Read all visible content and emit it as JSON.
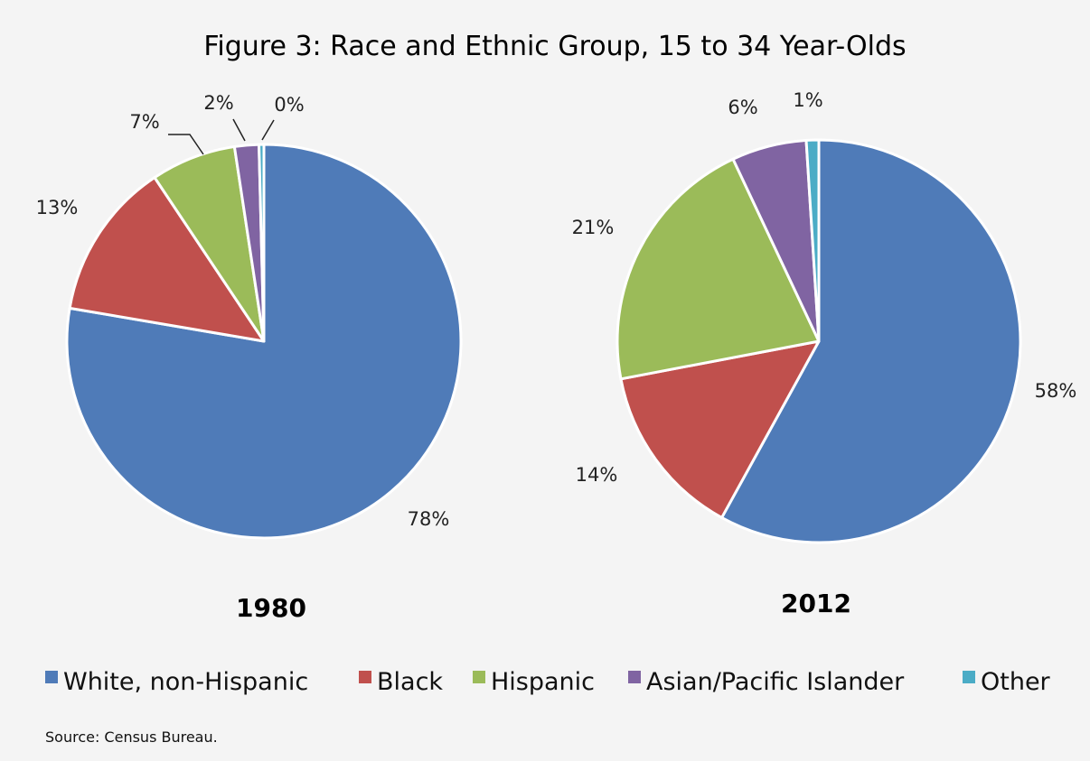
{
  "figure_title": "Figure 3: Race and Ethnic Group, 15 to 34 Year-Olds",
  "source": "Source: Census Bureau.",
  "colors": {
    "White, non-Hispanic": "#4f7bb8",
    "Black": "#c0504d",
    "Hispanic": "#9bbb59",
    "Asian/Pacific Islander": "#8064a2",
    "Other": "#4bacc6"
  },
  "legend": [
    "White, non-Hispanic",
    "Black",
    "Hispanic",
    "Asian/Pacific Islander",
    "Other"
  ],
  "chart_data": [
    {
      "type": "pie",
      "title": "1980",
      "categories": [
        "White, non-Hispanic",
        "Black",
        "Hispanic",
        "Asian/Pacific Islander",
        "Other"
      ],
      "values": [
        78,
        13,
        7,
        2,
        0.4
      ],
      "labels": [
        "78%",
        "13%",
        "7%",
        "2%",
        "0%"
      ]
    },
    {
      "type": "pie",
      "title": "2012",
      "categories": [
        "White, non-Hispanic",
        "Black",
        "Hispanic",
        "Asian/Pacific Islander",
        "Other"
      ],
      "values": [
        58,
        14,
        21,
        6,
        1
      ],
      "labels": [
        "58%",
        "14%",
        "21%",
        "6%",
        "1%"
      ]
    }
  ]
}
